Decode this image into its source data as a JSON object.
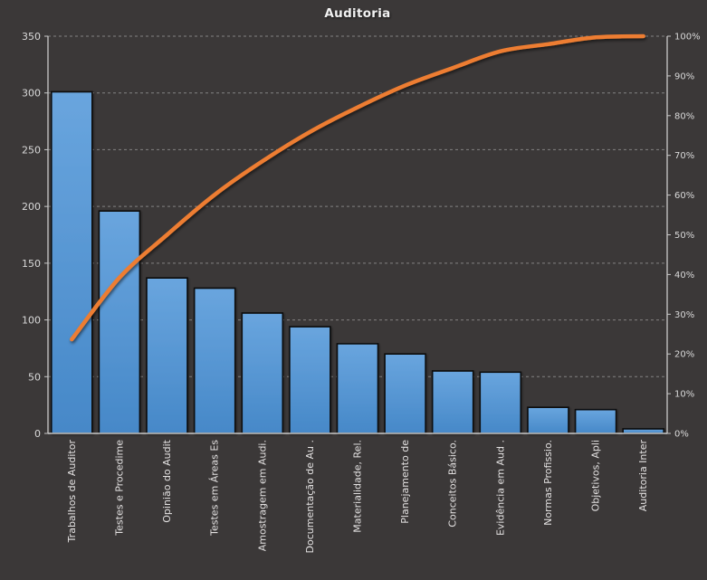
{
  "chart_data": {
    "type": "pareto (bar + cumulative line)",
    "title": "Auditoria",
    "legend": "none",
    "grid": "horizontal dashed",
    "categories": [
      "Trabalhos de Auditor",
      "Testes e Procedime",
      "Opinião do Audit",
      "Testes em Áreas Es",
      "Amostragem em Audi.",
      "Documentação de Au .",
      "Materialidade, Rel.",
      "Planejamento de",
      "Conceitos Básico.",
      "Evidência em Aud .",
      "Normas Profissio.",
      "Objetivos, Apli",
      "Auditoria Inter"
    ],
    "series": [
      {
        "name": "bars",
        "type": "bar",
        "values": [
          301,
          196,
          137,
          128,
          106,
          94,
          79,
          70,
          55,
          54,
          23,
          21,
          4
        ]
      },
      {
        "name": "cumulative-percent",
        "type": "line",
        "values": [
          23.7,
          39.2,
          50.0,
          60.1,
          68.5,
          75.9,
          82.1,
          87.6,
          92.0,
          96.2,
          98.0,
          99.7,
          100.0
        ]
      }
    ],
    "left_axis": {
      "min": 0,
      "max": 350,
      "step": 50,
      "ticks": [
        "0",
        "50",
        "100",
        "150",
        "200",
        "250",
        "300",
        "350"
      ]
    },
    "right_axis": {
      "min": "0%",
      "max": "100%",
      "step": "10%",
      "ticks": [
        "0%",
        "10%",
        "20%",
        "30%",
        "40%",
        "50%",
        "60%",
        "70%",
        "80%",
        "90%",
        "100%"
      ]
    }
  },
  "colors": {
    "background": "#3B3838",
    "bar_fill_top": "#69A5DE",
    "bar_fill_bottom": "#4688C8",
    "bar_border": "#0A0A0A",
    "line": "#ED7D31",
    "gridline": "#BFBFBF",
    "axis": "#C9C9C9",
    "tick_text": "#D9D9D9",
    "title_text": "#F2F2F2"
  }
}
